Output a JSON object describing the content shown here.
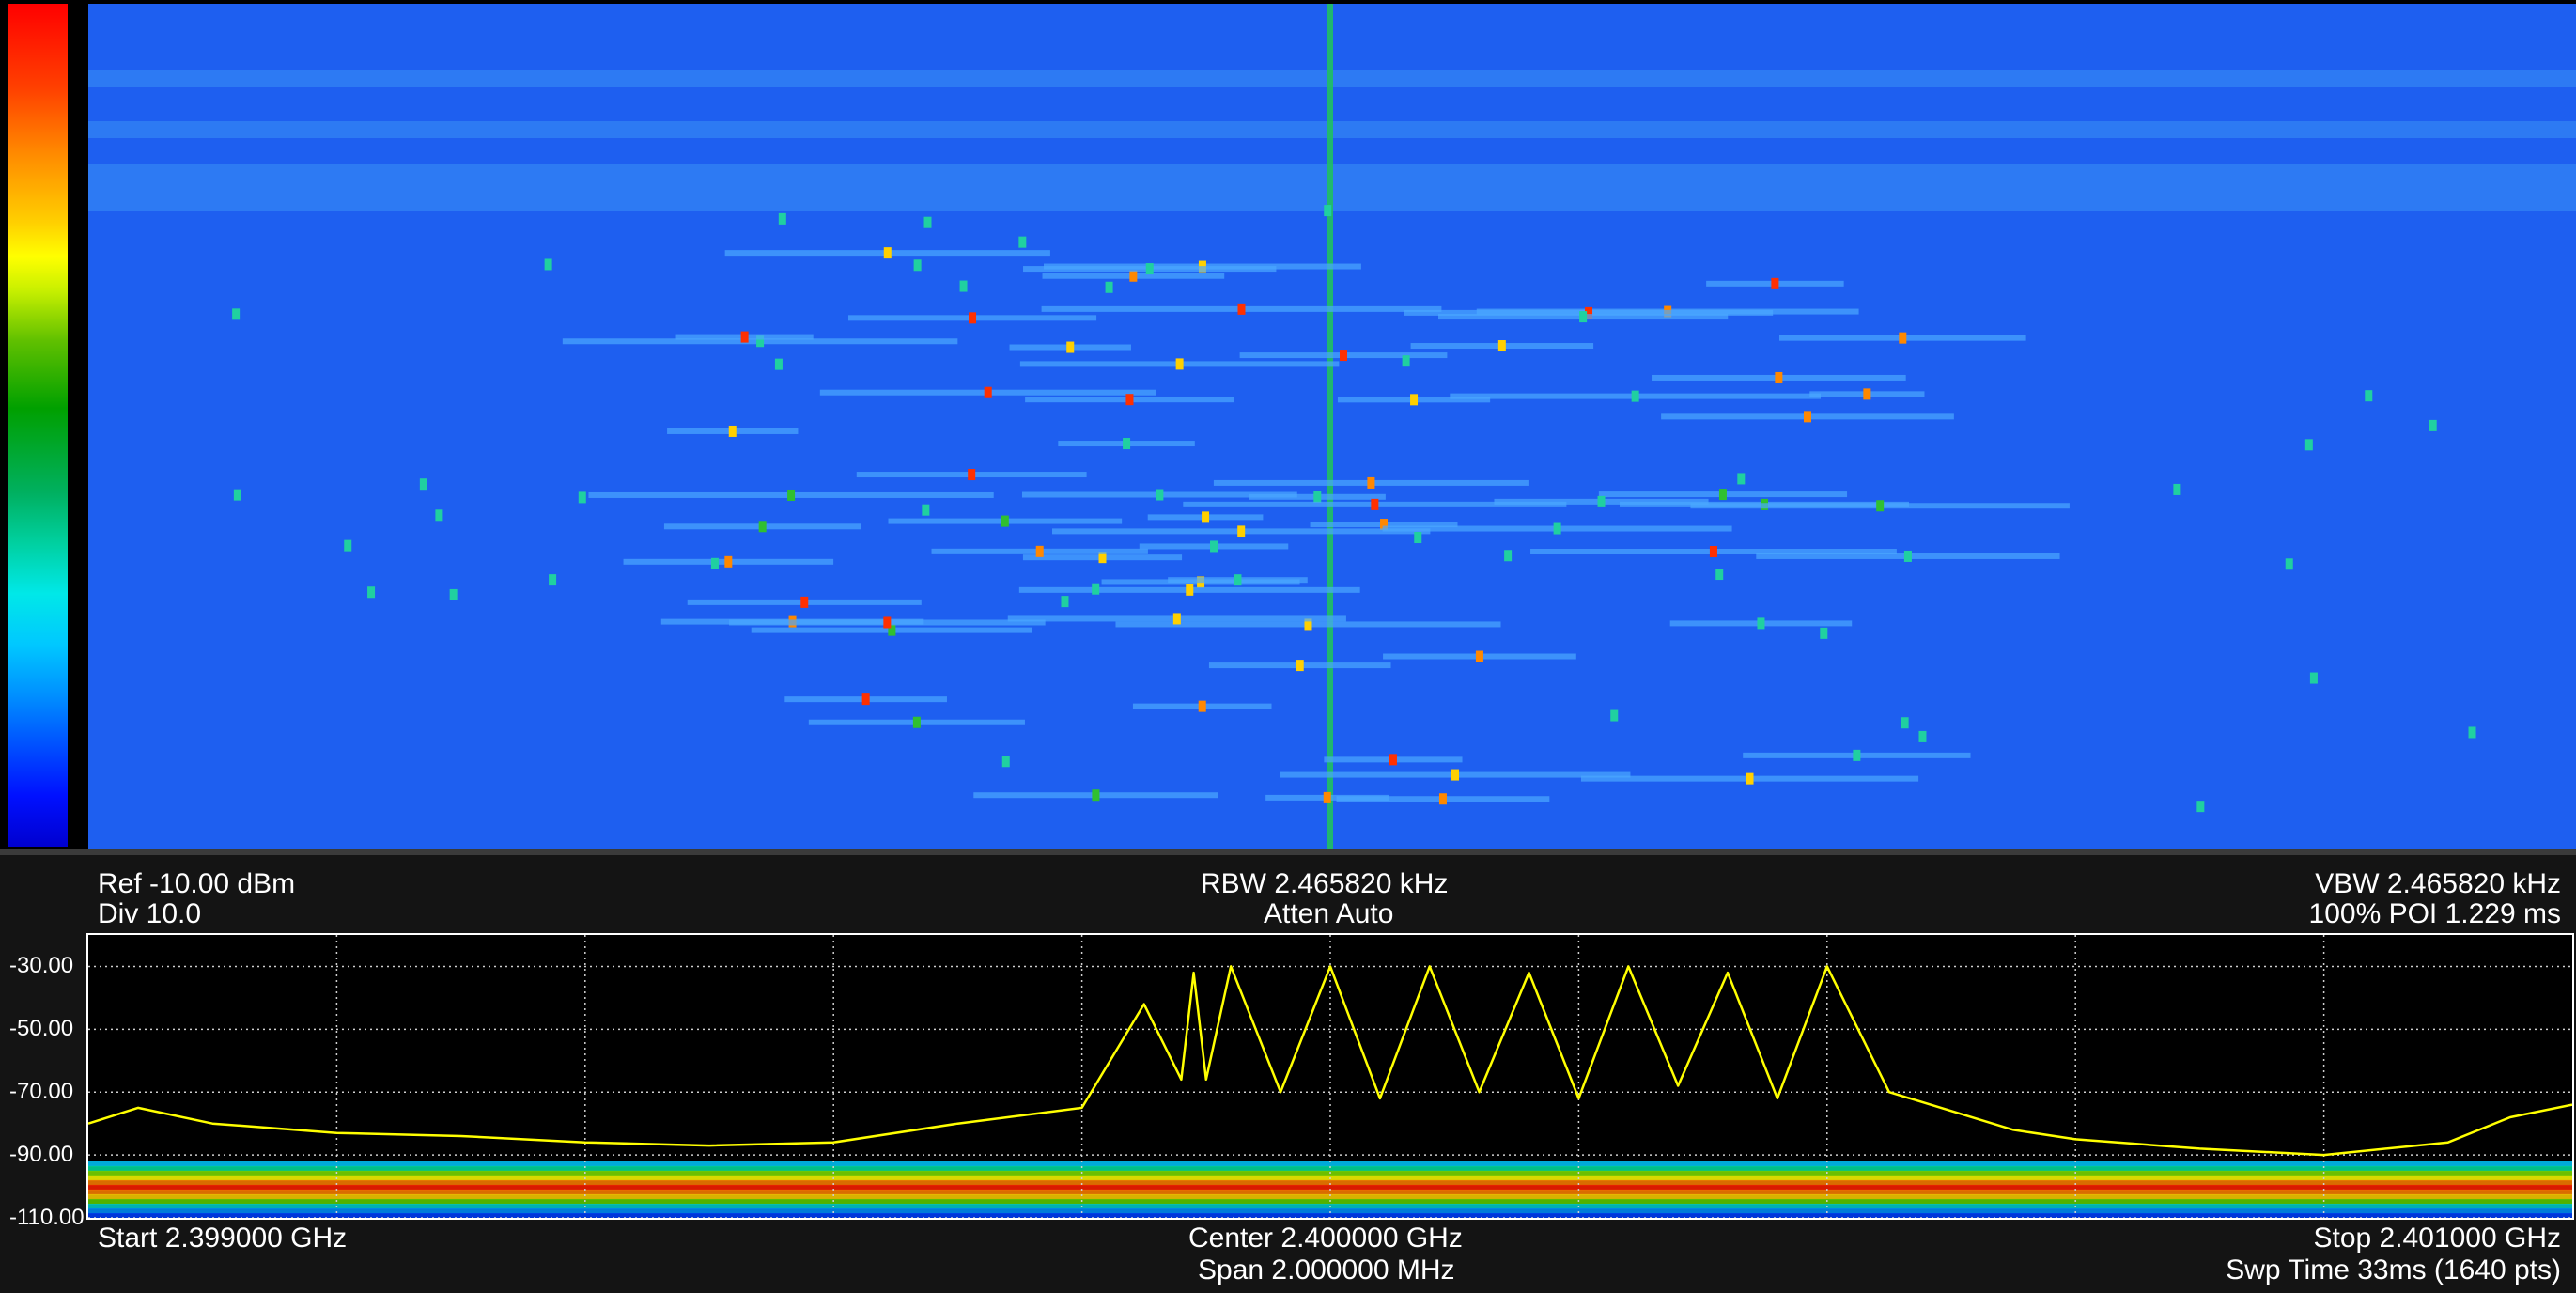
{
  "header": {
    "ref": "Ref -10.00 dBm",
    "div": "Div 10.0",
    "rbw": "RBW 2.465820 kHz",
    "atten": "Atten Auto",
    "vbw": "VBW 2.465820 kHz",
    "poi": "100% POI 1.229 ms"
  },
  "footer": {
    "start": "Start 2.399000 GHz",
    "center": "Center 2.400000 GHz",
    "span": "Span 2.000000 MHz",
    "stop": "Stop 2.401000 GHz",
    "sweep": "Swp Time 33ms (1640 pts)"
  },
  "colors": {
    "trace": "#ffff00",
    "waterfall_background": "#1e5ff0",
    "plot_background": "#000000",
    "grid": "#cfcfcf"
  },
  "chart_data": {
    "type": "line",
    "xlabel": "",
    "ylabel": "",
    "xlim": [
      2.399,
      2.401
    ],
    "ylim": [
      -110,
      -10
    ],
    "y_ticks": [
      "-30.00",
      "-50.00",
      "-70.00",
      "-90.00",
      "-110.00"
    ],
    "y_tick_values": [
      -30,
      -50,
      -70,
      -90,
      -110
    ],
    "grid": true,
    "series": [
      {
        "values_x": [
          2.399,
          2.39904,
          2.3991,
          2.3992,
          2.3993,
          2.3994,
          2.3995,
          2.3996,
          2.3997,
          2.3998,
          2.39985,
          2.39988,
          2.39989,
          2.3999,
          2.39992,
          2.39996,
          2.4,
          2.40004,
          2.40008,
          2.40012,
          2.40016,
          2.4002,
          2.40024,
          2.40028,
          2.40032,
          2.40036,
          2.4004,
          2.40045,
          2.40055,
          2.4006,
          2.4007,
          2.4008,
          2.4009,
          2.40095,
          2.401
        ],
        "values_y": [
          -80,
          -75,
          -80,
          -83,
          -84,
          -86,
          -87,
          -86,
          -80,
          -75,
          -42,
          -66,
          -32,
          -66,
          -30,
          -70,
          -30,
          -72,
          -30,
          -70,
          -32,
          -72,
          -30,
          -68,
          -32,
          -72,
          -30,
          -70,
          -82,
          -85,
          -88,
          -90,
          -86,
          -78,
          -74
        ]
      }
    ]
  }
}
